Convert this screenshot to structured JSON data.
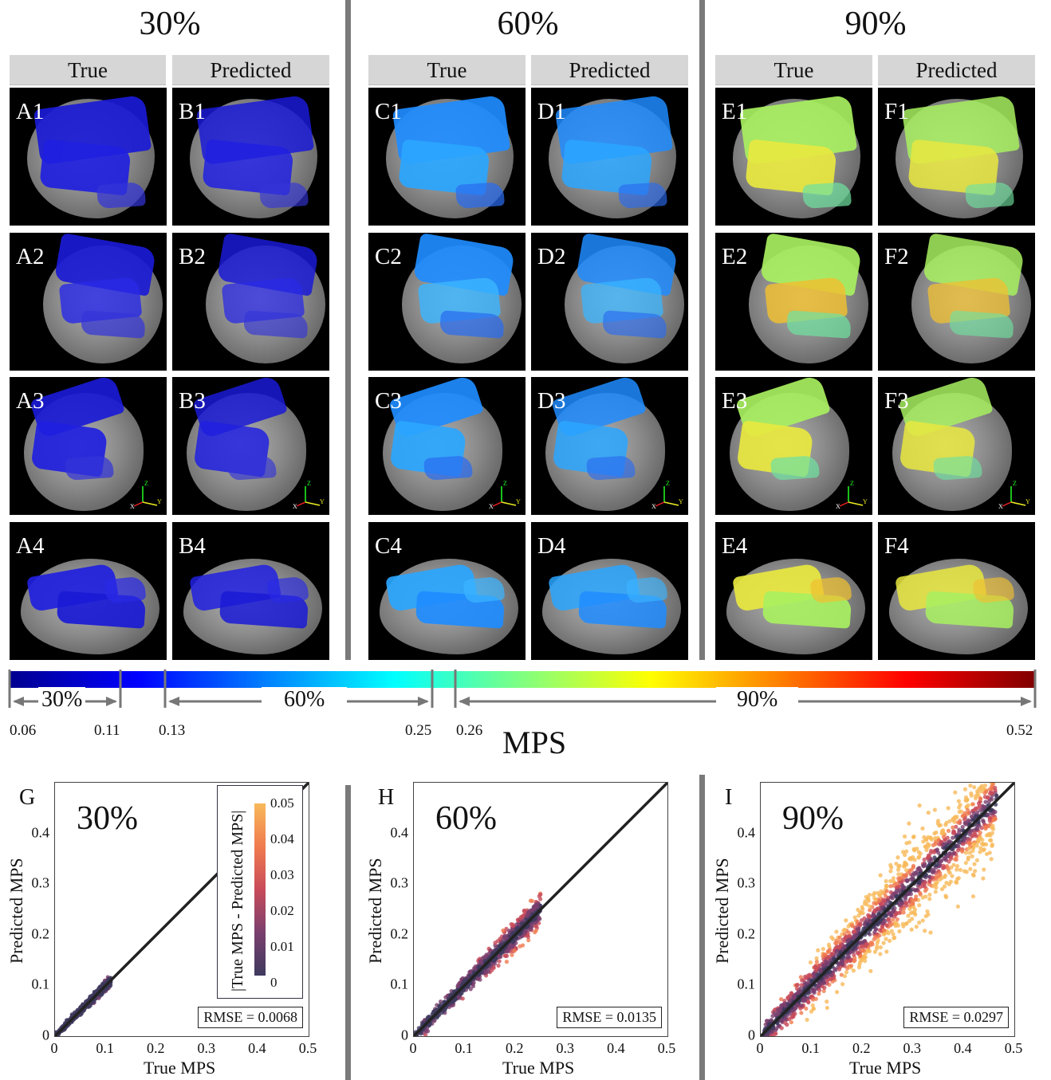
{
  "groups": [
    {
      "title": "30%",
      "true_label": "True",
      "pred_label": "Predicted"
    },
    {
      "title": "60%",
      "true_label": "True",
      "pred_label": "Predicted"
    },
    {
      "title": "90%",
      "true_label": "True",
      "pred_label": "Predicted"
    }
  ],
  "panels": [
    [
      "A1",
      "B1",
      "C1",
      "D1",
      "E1",
      "F1"
    ],
    [
      "A2",
      "B2",
      "C2",
      "D2",
      "E2",
      "F2"
    ],
    [
      "A3",
      "B3",
      "C3",
      "D3",
      "E3",
      "F3"
    ],
    [
      "A4",
      "B4",
      "C4",
      "D4",
      "E4",
      "F4"
    ]
  ],
  "axes_icon": {
    "x": "X",
    "y": "Y",
    "z": "Z"
  },
  "colorbar": {
    "title": "MPS",
    "colors": [
      "#00008f",
      "#0000ff",
      "#0080ff",
      "#00ffff",
      "#80ff80",
      "#ffff00",
      "#ff8000",
      "#ff0000",
      "#800000"
    ],
    "ranges": [
      {
        "label": "30%",
        "from": 0.06,
        "to": 0.11
      },
      {
        "label": "60%",
        "from": 0.13,
        "to": 0.25
      },
      {
        "label": "90%",
        "from": 0.26,
        "to": 0.52
      }
    ],
    "tick_labels": [
      "0.06",
      "0.11",
      "0.13",
      "0.25",
      "0.26",
      "0.52"
    ]
  },
  "scatter_plots": [
    {
      "letter": "G",
      "pct": "30%",
      "rmse": "RMSE = 0.0068"
    },
    {
      "letter": "H",
      "pct": "60%",
      "rmse": "RMSE = 0.0135"
    },
    {
      "letter": "I",
      "pct": "90%",
      "rmse": "RMSE = 0.0297"
    }
  ],
  "error_colorbar": {
    "label": "|True MPS - Predicted MPS|",
    "ticks": [
      "0.05",
      "0.04",
      "0.03",
      "0.02",
      "0.01",
      "0"
    ],
    "colors": [
      "#f8b95a",
      "#f07b4f",
      "#c84b5a",
      "#7a3f6e",
      "#3e3a5e"
    ]
  },
  "chart_data": [
    {
      "type": "scatter",
      "title": "30%",
      "xlabel": "True MPS",
      "ylabel": "Predicted MPS",
      "xlim": [
        0,
        0.5
      ],
      "ylim": [
        0,
        0.5
      ],
      "x_ticks": [
        "0",
        "0.1",
        "0.2",
        "0.3",
        "0.4",
        "0.5"
      ],
      "y_ticks": [
        "0",
        "0.1",
        "0.2",
        "0.3",
        "0.4"
      ],
      "identity_line": true,
      "true_range": [
        0,
        0.11
      ],
      "spread": 0.006,
      "rmse": 0.0068
    },
    {
      "type": "scatter",
      "title": "60%",
      "xlabel": "True MPS",
      "ylabel": "Predicted MPS",
      "xlim": [
        0,
        0.5
      ],
      "ylim": [
        0,
        0.5
      ],
      "x_ticks": [
        "0",
        "0.1",
        "0.2",
        "0.3",
        "0.4",
        "0.5"
      ],
      "y_ticks": [
        "0",
        "0.1",
        "0.2",
        "0.3",
        "0.4"
      ],
      "identity_line": true,
      "true_range": [
        0,
        0.25
      ],
      "spread": 0.013,
      "rmse": 0.0135
    },
    {
      "type": "scatter",
      "title": "90%",
      "xlabel": "True MPS",
      "ylabel": "Predicted MPS",
      "xlim": [
        0,
        0.5
      ],
      "ylim": [
        0,
        0.5
      ],
      "x_ticks": [
        "0",
        "0.1",
        "0.2",
        "0.3",
        "0.4",
        "0.5"
      ],
      "y_ticks": [
        "0",
        "0.1",
        "0.2",
        "0.3",
        "0.4"
      ],
      "identity_line": true,
      "true_range": [
        0,
        0.5
      ],
      "spread": 0.028,
      "rmse": 0.0297
    }
  ]
}
